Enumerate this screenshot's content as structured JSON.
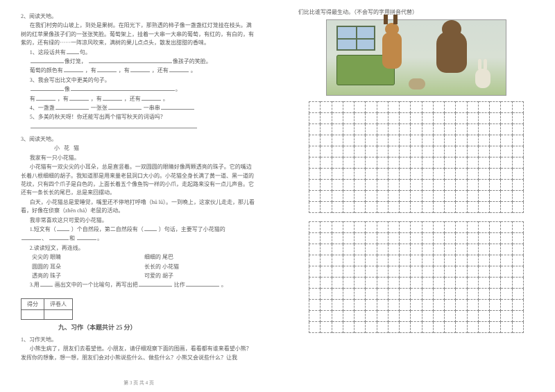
{
  "leftPage": {
    "q2": {
      "num": "2、阅读天地。",
      "p1": "在我们村旁的山坡上，到处是果树。在阳光下，那熟透的柿子像一盏盏红灯笼挂在枝头。满树的红苹果像孩子们的一张张笑脸。葡萄架上，挂着一大串一大串的葡萄，有红的，有白的，有紫的，还有绿的······一阵凉风吹来，满树的果儿点点头，散发出甜甜的香味。",
      "i1": "1、这段话共有",
      "i1b": "句。",
      "i2a": "像灯笼，",
      "i2b": "像孩子的笑脸。",
      "i3a": "葡萄的颜色有",
      "i3b": "，有",
      "i3c": "，有",
      "i3d": "，还有",
      "i3e": "。",
      "i4": "3、我会写出比文中更美的句子。",
      "i4a": "像",
      "i4b": "。",
      "i5a": "有",
      "i5b": "，有",
      "i5c": "，有",
      "i5d": "，还有",
      "i5e": "。",
      "i6a": "4、一盏盏",
      "i6b": "一张张",
      "i6c": "一串串",
      "i7": "5、多美的秋天呀！你还能写出两个描写秋天的词语吗？"
    },
    "q3": {
      "num": "3、阅读天地。",
      "title": "小 花 猫",
      "p1": "我家有一只小花猫。",
      "p2": "小花猫有一双尖尖的小耳朵，总是直竖着。一双圆圆的眼睛好像两颗透亮的珠子。它的嘴边长着八根细细的胡子。我知道那是用来量老鼠洞口大小的。小花猫全身长满了黄一道、黑一道的花纹，只有四个爪子是白色的，上面长着五个像鱼钩一样的小爪，走起路来没有一点儿声音。它还有一条长长的尾巴，总是来回摆动。",
      "p3": "白天，小花猫总是爱睡觉，嘴里还不停地打呼噜（hū  lū）。一到晚上，这家伙儿走走，那儿看看，好像在侦察（zhēn  chá）老鼠的活动。",
      "p4": "我非常喜欢这只可爱的小花猫。",
      "i1a": "1.短文有（",
      "i1b": "）个自然段，第二自然段有（",
      "i1c": "）句话，主要写了小花猫的",
      "i1d": "、",
      "i1e": "和",
      "i1f": "。",
      "i2": "2.读读短文，再连线。",
      "row1a": "尖尖的    眼睛",
      "row1b": "细细的    尾巴",
      "row2a": "圆圆的    耳朵",
      "row2b": "长长的    小花猫",
      "row3a": "透亮的    珠子",
      "row3b": "可爱的    胡子",
      "i3a": "3.用",
      "i3b": "画出文中的一个比喻句，再写出把",
      "i3c": "比作",
      "i3d": "。"
    },
    "scoreHead": [
      "得分",
      "评卷人"
    ],
    "section9": "九、习作（本题共计 25 分）",
    "q9_1": {
      "num": "1、习作天地。",
      "p1": "小熊生病了，朋友们去看望他。小朋友，请仔细观察下面的图画，看看都有谁来看望小熊？发挥你的想象，想一想，朋友们会对小熊说些什么、做些什么？小熊又会说些什么？让我"
    },
    "footer": "第 3 页  共 4 页"
  },
  "rightPage": {
    "topLine": "们比比谁写得最生动。（不会写的字用拼音代替）",
    "grid": {
      "rows": 10,
      "cols": 19
    }
  }
}
